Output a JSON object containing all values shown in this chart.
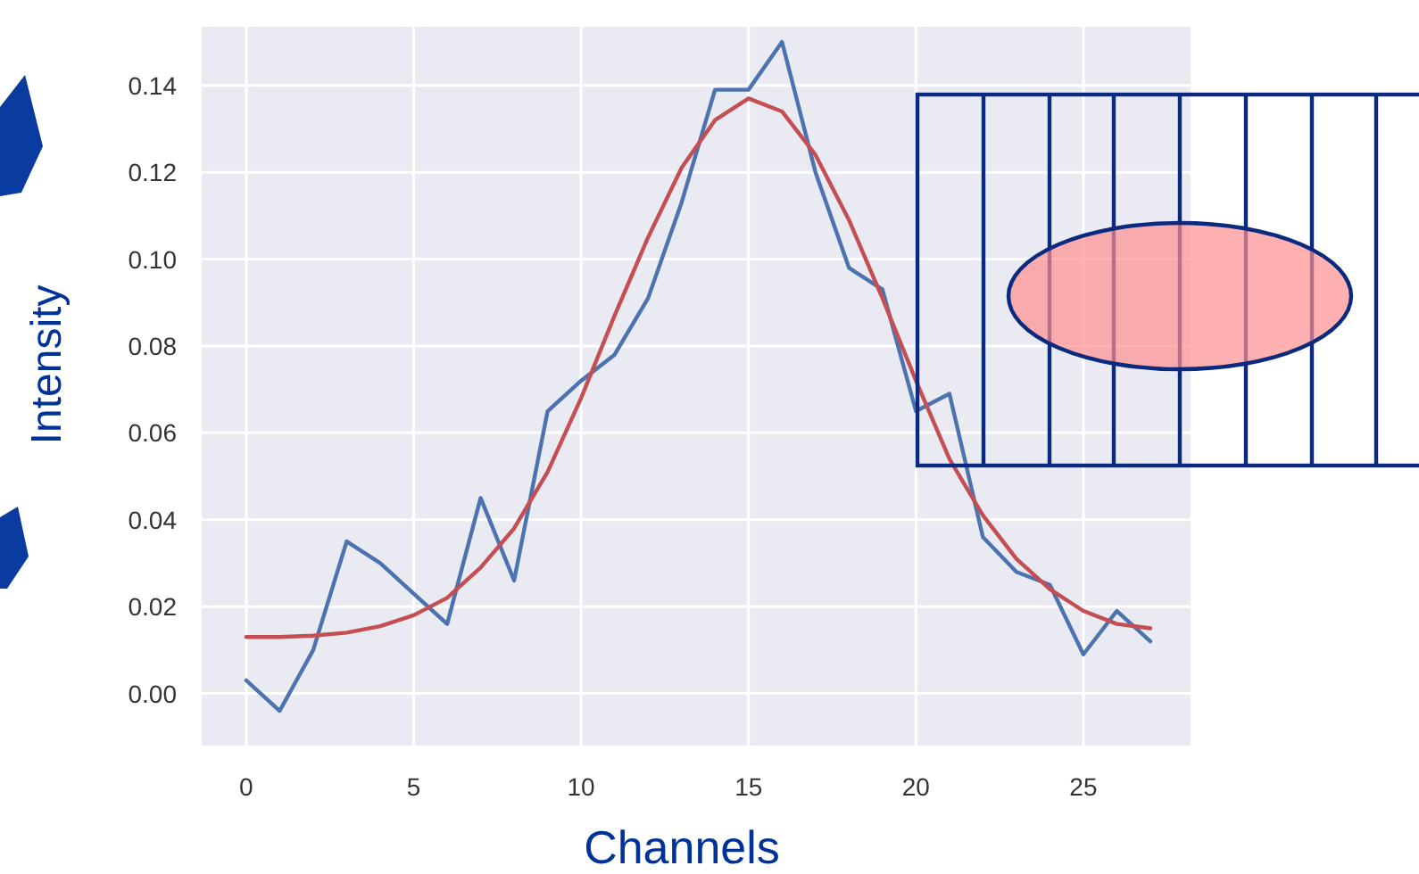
{
  "chart_data": {
    "type": "line",
    "xlabel": "Channels",
    "ylabel": "Intensity",
    "x": [
      0,
      1,
      2,
      3,
      4,
      5,
      6,
      7,
      8,
      9,
      10,
      11,
      12,
      13,
      14,
      15,
      16,
      17,
      18,
      19,
      20,
      21,
      22,
      23,
      24,
      25,
      26,
      27
    ],
    "series": [
      {
        "color": "#4c72b0",
        "values": [
          0.003,
          -0.004,
          0.01,
          0.035,
          0.03,
          0.023,
          0.016,
          0.045,
          0.026,
          0.065,
          0.072,
          0.078,
          0.091,
          0.113,
          0.139,
          0.139,
          0.15,
          0.12,
          0.098,
          0.093,
          0.065,
          0.069,
          0.036,
          0.028,
          0.025,
          0.009,
          0.019,
          0.012
        ]
      },
      {
        "color": "#c44e52",
        "values": [
          0.013,
          0.013,
          0.0133,
          0.014,
          0.0155,
          0.018,
          0.022,
          0.029,
          0.038,
          0.051,
          0.068,
          0.087,
          0.105,
          0.121,
          0.132,
          0.137,
          0.134,
          0.124,
          0.109,
          0.091,
          0.072,
          0.054,
          0.041,
          0.031,
          0.024,
          0.019,
          0.016,
          0.015
        ]
      }
    ],
    "xlim": [
      -1.33,
      28.2
    ],
    "ylim": [
      -0.012,
      0.1535
    ],
    "xticks": [
      0,
      5,
      10,
      15,
      20,
      25
    ],
    "yticks": [
      {
        "value": 0,
        "label": "0.00"
      },
      {
        "value": 0.02,
        "label": "0.02"
      },
      {
        "value": 0.04,
        "label": "0.04"
      },
      {
        "value": 0.06,
        "label": "0.06"
      },
      {
        "value": 0.08,
        "label": "0.08"
      },
      {
        "value": 0.1,
        "label": "0.10"
      },
      {
        "value": 0.12,
        "label": "0.12"
      },
      {
        "value": 0.14,
        "label": "0.14"
      }
    ],
    "grid": true,
    "marker": "none",
    "line_style": "solid"
  }
}
